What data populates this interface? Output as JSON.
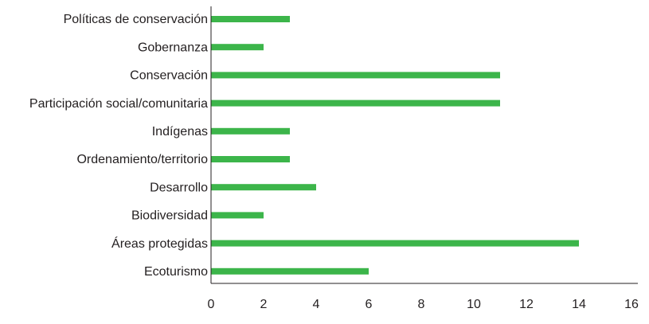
{
  "chart_data": {
    "type": "bar",
    "orientation": "horizontal",
    "categories": [
      "Políticas de conservación",
      "Gobernanza",
      "Conservación",
      "Participación social/comunitaria",
      "Indígenas",
      "Ordenamiento/territorio",
      "Desarrollo",
      "Biodiversidad",
      "Áreas protegidas",
      "Ecoturismo"
    ],
    "values": [
      3,
      2,
      11,
      11,
      3,
      3,
      4,
      2,
      14,
      6
    ],
    "title": "",
    "xlabel": "",
    "ylabel": "",
    "xlim": [
      0,
      16
    ],
    "xticks": [
      "0",
      "2",
      "4",
      "6",
      "8",
      "10",
      "12",
      "14",
      "16"
    ],
    "grid": false,
    "legend": "none",
    "bar_color": "#3cb54a",
    "axis_color": "#231f20"
  }
}
